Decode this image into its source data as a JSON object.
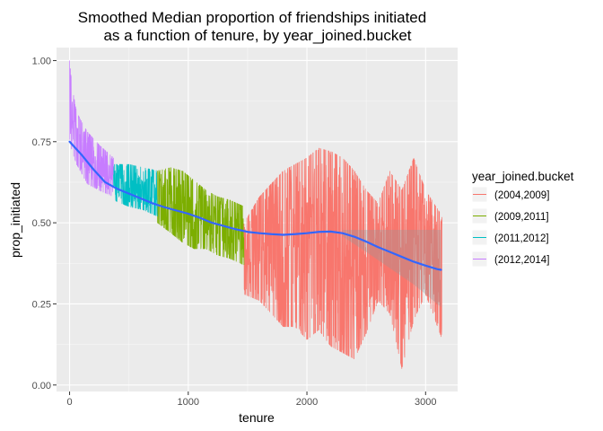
{
  "chart_data": {
    "type": "line",
    "title_line1": "Smoothed Median proportion of friendships initiated",
    "title_line2": "as a function of tenure, by year_joined.bucket",
    "xlabel": "tenure",
    "ylabel": "prop_initiated",
    "xlim": [
      -110,
      3270
    ],
    "ylim": [
      -0.02,
      1.04
    ],
    "x_ticks": [
      0,
      1000,
      2000,
      3000
    ],
    "x_tick_labels": [
      "0",
      "1000",
      "2000",
      "3000"
    ],
    "y_ticks": [
      0,
      0.25,
      0.5,
      0.75,
      1.0
    ],
    "y_tick_labels": [
      "0.00",
      "0.25",
      "0.50",
      "0.75",
      "1.00"
    ],
    "grid": true,
    "panel_background": "#ebebeb",
    "legend": {
      "title": "year_joined.bucket",
      "position": "right"
    },
    "series": [
      {
        "name": "(2004,2009]",
        "color": "#f8766d",
        "tenure_range": [
          1470,
          3140
        ],
        "envelope": [
          [
            1470,
            0.5,
            0.28
          ],
          [
            1600,
            0.58,
            0.26
          ],
          [
            1700,
            0.62,
            0.22
          ],
          [
            1800,
            0.66,
            0.18
          ],
          [
            1900,
            0.68,
            0.18
          ],
          [
            2000,
            0.7,
            0.14
          ],
          [
            2100,
            0.73,
            0.17
          ],
          [
            2200,
            0.72,
            0.12
          ],
          [
            2300,
            0.7,
            0.1
          ],
          [
            2400,
            0.66,
            0.08
          ],
          [
            2500,
            0.6,
            0.16
          ],
          [
            2600,
            0.56,
            0.26
          ],
          [
            2700,
            0.66,
            0.22
          ],
          [
            2800,
            0.6,
            0.05
          ],
          [
            2900,
            0.7,
            0.2
          ],
          [
            3000,
            0.6,
            0.28
          ],
          [
            3140,
            0.52,
            0.14
          ]
        ]
      },
      {
        "name": "(2009,2011]",
        "color": "#7cae00",
        "tenure_range": [
          740,
          1470
        ],
        "envelope": [
          [
            740,
            0.66,
            0.5
          ],
          [
            850,
            0.67,
            0.47
          ],
          [
            950,
            0.66,
            0.44
          ],
          [
            1050,
            0.63,
            0.42
          ],
          [
            1150,
            0.6,
            0.42
          ],
          [
            1250,
            0.58,
            0.4
          ],
          [
            1350,
            0.57,
            0.39
          ],
          [
            1470,
            0.55,
            0.37
          ]
        ]
      },
      {
        "name": "(2011,2012]",
        "color": "#00bfc4",
        "tenure_range": [
          370,
          740
        ],
        "envelope": [
          [
            370,
            0.68,
            0.57
          ],
          [
            500,
            0.68,
            0.55
          ],
          [
            620,
            0.67,
            0.54
          ],
          [
            740,
            0.66,
            0.52
          ]
        ]
      },
      {
        "name": "(2012,2014]",
        "color": "#c77cff",
        "tenure_range": [
          0,
          370
        ],
        "envelope": [
          [
            0,
            1.0,
            0.76
          ],
          [
            20,
            0.92,
            0.72
          ],
          [
            60,
            0.84,
            0.68
          ],
          [
            150,
            0.78,
            0.62
          ],
          [
            250,
            0.74,
            0.6
          ],
          [
            370,
            0.7,
            0.58
          ]
        ]
      }
    ],
    "smooth": {
      "color": "#3366ff",
      "x": [
        0,
        100,
        200,
        300,
        400,
        500,
        600,
        700,
        800,
        900,
        1000,
        1100,
        1200,
        1300,
        1400,
        1500,
        1600,
        1700,
        1800,
        1900,
        2000,
        2100,
        2200,
        2300,
        2400,
        2500,
        2600,
        2700,
        2800,
        2900,
        3000,
        3100,
        3130
      ],
      "y": [
        0.75,
        0.71,
        0.665,
        0.625,
        0.605,
        0.59,
        0.575,
        0.56,
        0.548,
        0.538,
        0.528,
        0.515,
        0.5,
        0.49,
        0.48,
        0.472,
        0.468,
        0.465,
        0.463,
        0.465,
        0.468,
        0.472,
        0.473,
        0.468,
        0.457,
        0.442,
        0.425,
        0.41,
        0.395,
        0.38,
        0.368,
        0.357,
        0.355
      ],
      "band": {
        "x": [
          2300,
          2500,
          2700,
          2900,
          3000,
          3130
        ],
        "upper": [
          0.478,
          0.478,
          0.478,
          0.478,
          0.478,
          0.478
        ],
        "lower": [
          0.458,
          0.41,
          0.36,
          0.31,
          0.28,
          0.24
        ]
      }
    }
  }
}
